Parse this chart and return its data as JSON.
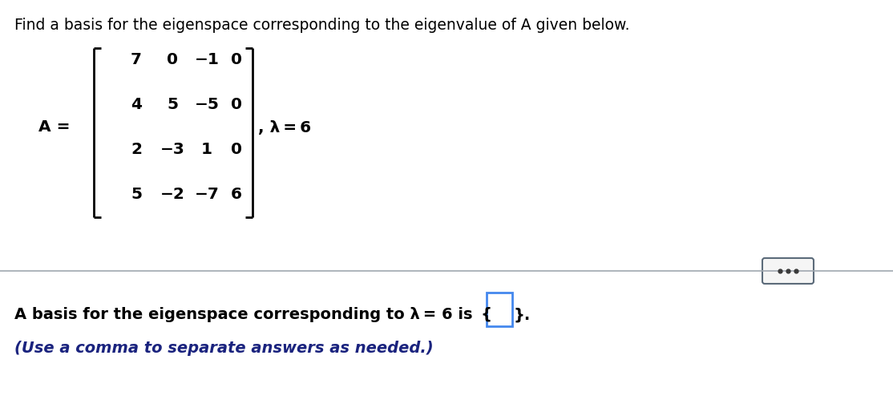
{
  "title_text": "Find a basis for the eigenspace corresponding to the eigenvalue of A given below.",
  "title_fontsize": 13.5,
  "matrix_rows": [
    [
      "7",
      "0",
      "−1",
      "0"
    ],
    [
      "4",
      "5",
      "−5",
      "0"
    ],
    [
      "2",
      "−3",
      "1",
      "0"
    ],
    [
      "5",
      "−2",
      "−7",
      "6"
    ]
  ],
  "lambda_text": ", λ = 6",
  "bg_color": "#ffffff",
  "text_color": "#000000",
  "blue_color": "#1a237e",
  "matrix_fontsize": 14.5,
  "label_fontsize": 14.5,
  "basis_fontsize": 14.0,
  "hint_fontsize": 14.0,
  "dots_color": "#5c6b7a",
  "dots_bg": "#f5f5f5"
}
